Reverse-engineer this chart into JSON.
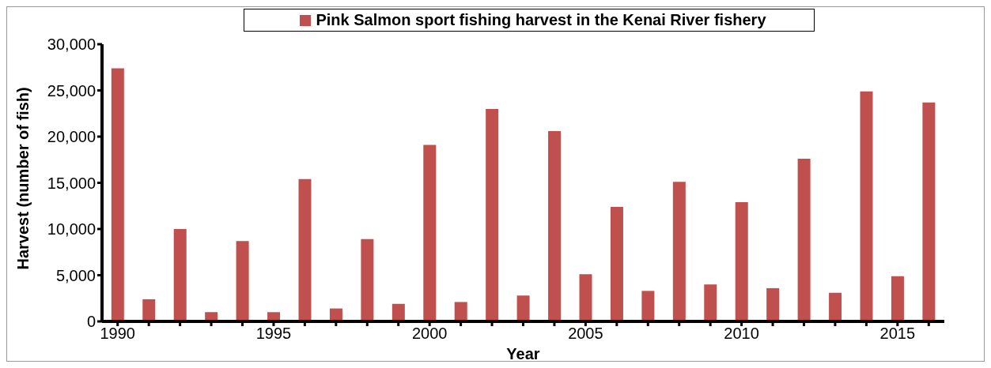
{
  "chart_data": {
    "type": "bar",
    "xlabel": "Year",
    "ylabel": "Harvest (number of fish)",
    "categories": [
      "1990",
      null,
      null,
      null,
      null,
      "1995",
      null,
      null,
      null,
      null,
      "2000",
      null,
      null,
      null,
      null,
      "2005",
      null,
      null,
      null,
      null,
      "2010",
      null,
      null,
      null,
      null,
      "2015",
      null
    ],
    "series": [
      {
        "name": "Pink Salmon sport fishing harvest in the Kenai River fishery",
        "color": "#c0504d",
        "values": [
          27400,
          2400,
          10000,
          1000,
          8700,
          1000,
          15400,
          1400,
          8900,
          1900,
          19100,
          2100,
          23000,
          2800,
          20600,
          5100,
          12400,
          3300,
          15100,
          4000,
          12900,
          3600,
          17600,
          3100,
          24900,
          4900,
          23700
        ]
      }
    ],
    "ylim": [
      0,
      30000
    ],
    "yticks": [
      {
        "value": 0,
        "label": "0"
      },
      {
        "value": 5000,
        "label": "5,000"
      },
      {
        "value": 10000,
        "label": "10,000"
      },
      {
        "value": 15000,
        "label": "15,000"
      },
      {
        "value": 20000,
        "label": "20,000"
      },
      {
        "value": 25000,
        "label": "25,000"
      },
      {
        "value": 30000,
        "label": "30,000"
      }
    ],
    "grid": false,
    "legend": "top"
  }
}
